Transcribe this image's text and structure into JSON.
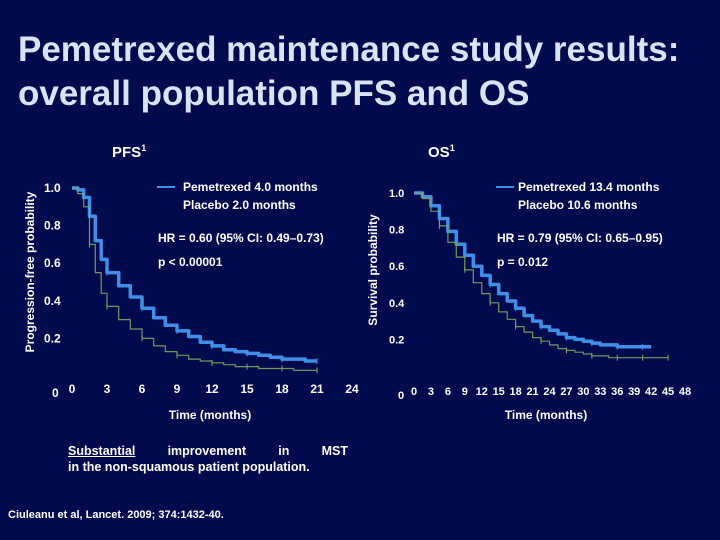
{
  "slide": {
    "title_line1": "Pemetrexed maintenance study results:",
    "title_line2": "overall population PFS and OS",
    "note_word1": "Substantial",
    "note_word2": "improvement",
    "note_word3": "in",
    "note_word4": "MST",
    "note_line2": "in the non-squamous patient population.",
    "citation": "Ciuleanu et al, Lancet. 2009; 374:1432-40."
  },
  "colors": {
    "background": "#000a4d",
    "pemetrexed": "#3f8fe8",
    "placebo": "#7ea85e",
    "title": "#d8e4f4"
  },
  "chart_data": [
    {
      "type": "line",
      "panel_label": "PFS",
      "superscript": "1",
      "ylabel": "Progression-free probability",
      "xlabel": "Time (months)",
      "x_ticks": [
        "0",
        "3",
        "6",
        "9",
        "12",
        "15",
        "18",
        "21",
        "24"
      ],
      "y_ticks": [
        "0",
        "0.2",
        "0.4",
        "0.6",
        "0.8",
        "1.0"
      ],
      "xlim": [
        0,
        24
      ],
      "ylim": [
        0,
        1.0
      ],
      "legend": [
        "Pemetrexed 4.0 months",
        "Placebo 2.0 months"
      ],
      "annotations": [
        "HR = 0.60 (95% CI: 0.49–0.73)",
        "p < 0.00001"
      ],
      "series": [
        {
          "name": "Pemetrexed 4.0 months",
          "color": "#3f8fe8",
          "x": [
            0,
            0.5,
            1,
            1.5,
            2,
            2.5,
            3,
            4,
            5,
            6,
            7,
            8,
            9,
            10,
            11,
            12,
            13,
            14,
            15,
            16,
            17,
            18,
            19,
            20,
            21
          ],
          "y": [
            1.0,
            0.99,
            0.95,
            0.85,
            0.72,
            0.62,
            0.55,
            0.48,
            0.42,
            0.36,
            0.31,
            0.27,
            0.24,
            0.21,
            0.18,
            0.16,
            0.14,
            0.13,
            0.12,
            0.11,
            0.1,
            0.09,
            0.09,
            0.08,
            0.08
          ]
        },
        {
          "name": "Placebo 2.0 months",
          "color": "#7ea85e",
          "x": [
            0,
            0.5,
            1,
            1.5,
            2,
            2.5,
            3,
            4,
            5,
            6,
            7,
            8,
            9,
            10,
            11,
            12,
            13,
            14,
            15,
            16,
            17,
            18,
            19,
            20,
            21
          ],
          "y": [
            1.0,
            0.97,
            0.9,
            0.7,
            0.55,
            0.44,
            0.37,
            0.3,
            0.25,
            0.2,
            0.16,
            0.13,
            0.11,
            0.09,
            0.08,
            0.07,
            0.06,
            0.05,
            0.05,
            0.04,
            0.04,
            0.04,
            0.03,
            0.03,
            0.03
          ]
        }
      ]
    },
    {
      "type": "line",
      "panel_label": "OS",
      "superscript": "1",
      "ylabel": "Survival probability",
      "xlabel": "Time (months)",
      "x_ticks": [
        "0",
        "3",
        "6",
        "9",
        "12",
        "15",
        "18",
        "21",
        "24",
        "27",
        "30",
        "33",
        "36",
        "39",
        "42",
        "45",
        "48"
      ],
      "y_ticks": [
        "0",
        "0.2",
        "0.4",
        "0.6",
        "0.8",
        "1.0"
      ],
      "xlim": [
        0,
        48
      ],
      "ylim": [
        0,
        1.0
      ],
      "legend": [
        "Pemetrexed 13.4 months",
        "Placebo 10.6 months"
      ],
      "annotations": [
        "HR = 0.79 (95% CI: 0.65–0.95)",
        "p = 0.012"
      ],
      "series": [
        {
          "name": "Pemetrexed 13.4 months",
          "color": "#3f8fe8",
          "x": [
            0,
            1.5,
            3,
            4.5,
            6,
            7.5,
            9,
            10.5,
            12,
            13.5,
            15,
            16.5,
            18,
            19.5,
            21,
            22.5,
            24,
            25.5,
            27,
            28.5,
            30,
            31.5,
            33,
            34.5,
            36,
            37.5,
            39,
            40.5,
            42
          ],
          "y": [
            1.0,
            0.98,
            0.93,
            0.86,
            0.79,
            0.72,
            0.66,
            0.6,
            0.55,
            0.5,
            0.45,
            0.41,
            0.37,
            0.33,
            0.3,
            0.27,
            0.25,
            0.23,
            0.21,
            0.2,
            0.19,
            0.18,
            0.17,
            0.17,
            0.16,
            0.16,
            0.16,
            0.16,
            0.16
          ]
        },
        {
          "name": "Placebo 10.6 months",
          "color": "#7ea85e",
          "x": [
            0,
            1.5,
            3,
            4.5,
            6,
            7.5,
            9,
            10.5,
            12,
            13.5,
            15,
            16.5,
            18,
            19.5,
            21,
            22.5,
            24,
            25.5,
            27,
            28.5,
            30,
            31.5,
            33,
            34.5,
            36,
            37.5,
            39,
            40.5,
            42,
            43.5,
            45
          ],
          "y": [
            1.0,
            0.97,
            0.9,
            0.82,
            0.73,
            0.65,
            0.58,
            0.51,
            0.45,
            0.4,
            0.35,
            0.31,
            0.27,
            0.24,
            0.21,
            0.19,
            0.17,
            0.15,
            0.14,
            0.13,
            0.12,
            0.11,
            0.11,
            0.1,
            0.1,
            0.1,
            0.1,
            0.1,
            0.1,
            0.1,
            0.1
          ]
        }
      ]
    }
  ]
}
